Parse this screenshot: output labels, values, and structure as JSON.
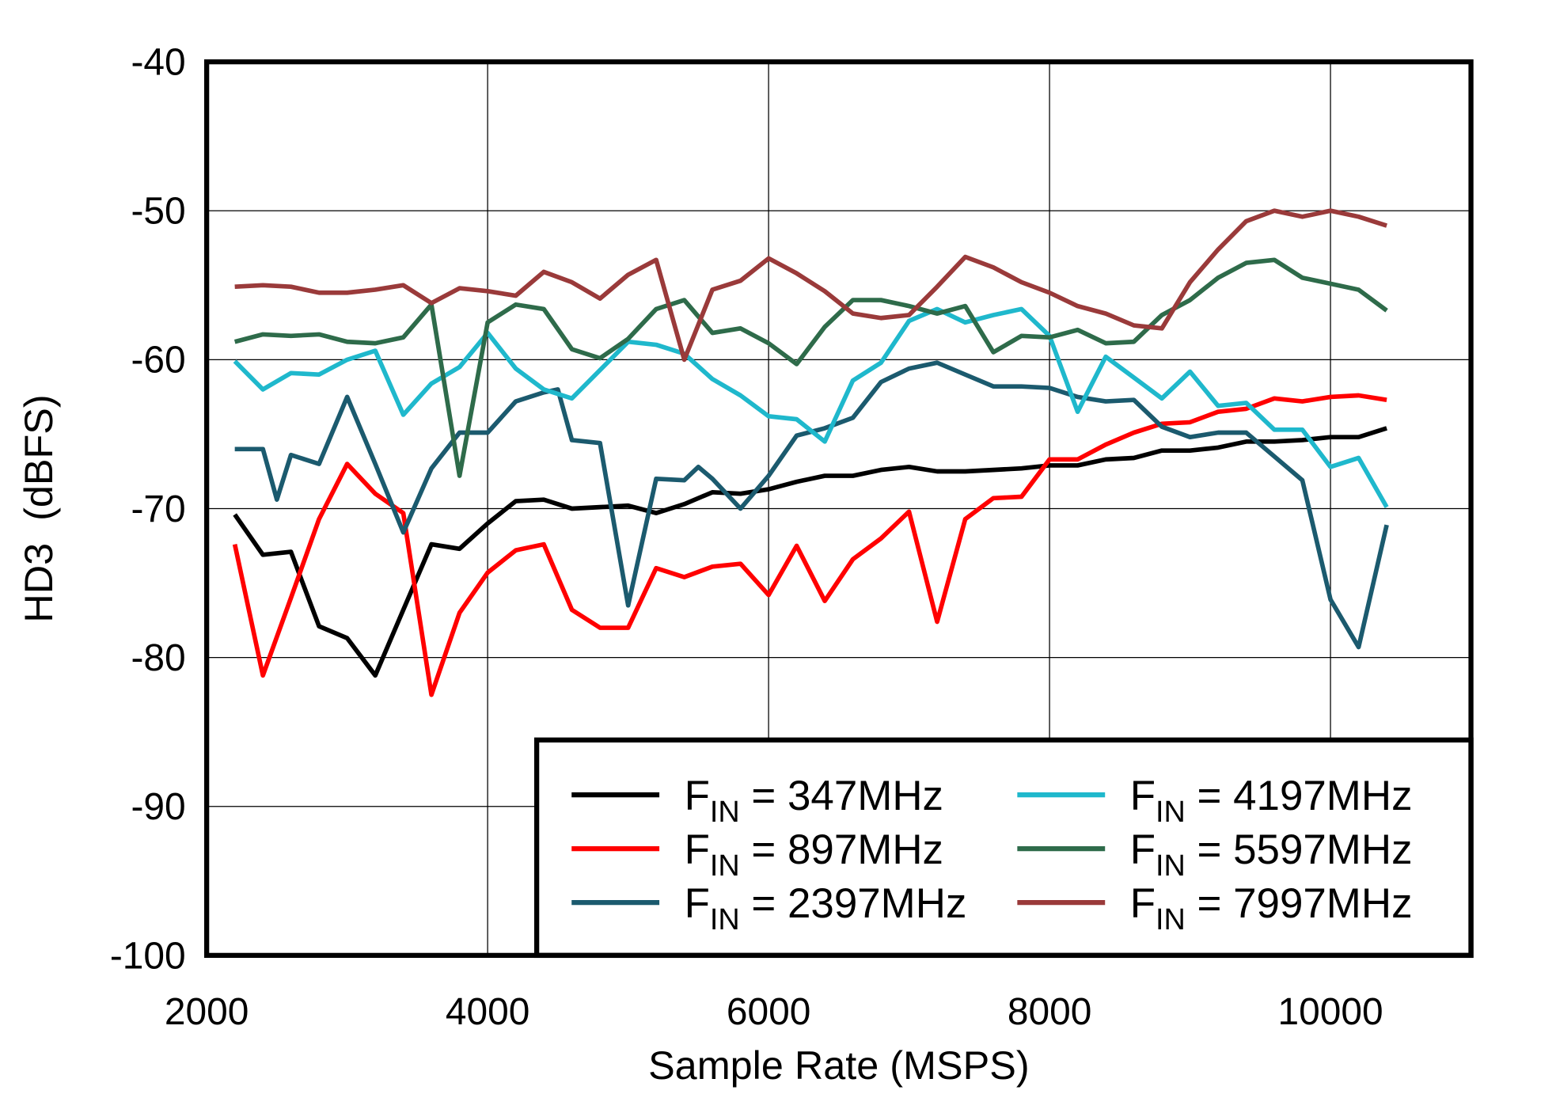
{
  "chart_data": {
    "type": "line",
    "title": "",
    "xlabel": "Sample Rate  (MSPS)",
    "ylabel": "HD3  (dBFS)",
    "xlim": [
      2000,
      11000
    ],
    "ylim": [
      -100,
      -40
    ],
    "xticks": [
      2000,
      4000,
      6000,
      8000,
      10000
    ],
    "yticks": [
      -40,
      -50,
      -60,
      -70,
      -80,
      -90,
      -100
    ],
    "grid": true,
    "legend_position": "bottom-right",
    "series": [
      {
        "name_prefix": "F",
        "name_sub": "IN",
        "name_suffix": " = 347MHz",
        "color": "#000000",
        "x": [
          2200,
          2400,
          2600,
          2800,
          3000,
          3200,
          3400,
          3600,
          3800,
          4000,
          4200,
          4400,
          4600,
          4800,
          5000,
          5200,
          5400,
          5600,
          5800,
          6000,
          6200,
          6400,
          6600,
          6800,
          7000,
          7200,
          7400,
          7600,
          7800,
          8000,
          8200,
          8400,
          8600,
          8800,
          9000,
          9200,
          9400,
          9600,
          9800,
          10000,
          10200,
          10400
        ],
        "y": [
          -70.4,
          -73.1,
          -72.9,
          -77.9,
          -78.7,
          -81.2,
          -76.8,
          -72.4,
          -72.7,
          -71.0,
          -69.5,
          -69.4,
          -70.0,
          -69.9,
          -69.8,
          -70.3,
          -69.7,
          -68.9,
          -69.0,
          -68.7,
          -68.2,
          -67.8,
          -67.8,
          -67.4,
          -67.2,
          -67.5,
          -67.5,
          -67.4,
          -67.3,
          -67.1,
          -67.1,
          -66.7,
          -66.6,
          -66.1,
          -66.1,
          -65.9,
          -65.5,
          -65.5,
          -65.4,
          -65.2,
          -65.2,
          -64.6
        ]
      },
      {
        "name_prefix": "F",
        "name_sub": "IN",
        "name_suffix": " = 897MHz",
        "color": "#ff0000",
        "x": [
          2200,
          2400,
          2600,
          2800,
          3000,
          3200,
          3400,
          3600,
          3800,
          4000,
          4200,
          4400,
          4600,
          4800,
          5000,
          5200,
          5400,
          5600,
          5800,
          6000,
          6200,
          6400,
          6600,
          6800,
          7000,
          7200,
          7400,
          7600,
          7800,
          8000,
          8200,
          8400,
          8600,
          8800,
          9000,
          9200,
          9400,
          9600,
          9800,
          10000,
          10200,
          10400
        ],
        "y": [
          -72.4,
          -81.2,
          -76.0,
          -70.7,
          -67.0,
          -69.0,
          -70.3,
          -82.5,
          -77.0,
          -74.3,
          -72.8,
          -72.4,
          -76.8,
          -78.0,
          -78.0,
          -74.0,
          -74.6,
          -73.9,
          -73.7,
          -75.8,
          -72.5,
          -76.2,
          -73.4,
          -72.0,
          -70.2,
          -77.6,
          -70.7,
          -69.3,
          -69.2,
          -66.7,
          -66.7,
          -65.7,
          -64.9,
          -64.3,
          -64.2,
          -63.5,
          -63.3,
          -62.6,
          -62.8,
          -62.5,
          -62.4,
          -62.7
        ]
      },
      {
        "name_prefix": "F",
        "name_sub": "IN",
        "name_suffix": " = 2397MHz",
        "color": "#1b5a6e",
        "x": [
          2200,
          2400,
          2500,
          2600,
          2800,
          3000,
          3200,
          3400,
          3600,
          3800,
          4000,
          4200,
          4400,
          4500,
          4600,
          4800,
          5000,
          5200,
          5400,
          5500,
          5600,
          5800,
          6000,
          6200,
          6400,
          6600,
          6800,
          7000,
          7200,
          7400,
          7600,
          7800,
          8000,
          8200,
          8400,
          8600,
          8800,
          9000,
          9200,
          9400,
          9600,
          9800,
          10000,
          10200,
          10400
        ],
        "y": [
          -66.0,
          -66.0,
          -69.4,
          -66.4,
          -67.0,
          -62.5,
          -67.0,
          -71.6,
          -67.3,
          -64.9,
          -64.9,
          -62.8,
          -62.2,
          -62.0,
          -65.4,
          -65.6,
          -76.5,
          -68.0,
          -68.1,
          -67.2,
          -68.0,
          -70.0,
          -67.8,
          -65.1,
          -64.6,
          -63.9,
          -61.5,
          -60.6,
          -60.2,
          -61.0,
          -61.8,
          -61.8,
          -61.9,
          -62.5,
          -62.8,
          -62.7,
          -64.5,
          -65.2,
          -64.9,
          -64.9,
          -66.5,
          -68.1,
          -76.1,
          -79.3,
          -71.1
        ]
      },
      {
        "name_prefix": "F",
        "name_sub": "IN",
        "name_suffix": " = 4197MHz",
        "color": "#1fb8cc",
        "x": [
          2200,
          2400,
          2600,
          2800,
          3000,
          3200,
          3400,
          3600,
          3800,
          4000,
          4200,
          4400,
          4600,
          4800,
          5000,
          5200,
          5400,
          5600,
          5800,
          6000,
          6200,
          6400,
          6600,
          6800,
          7000,
          7200,
          7400,
          7600,
          7800,
          8000,
          8200,
          8400,
          8600,
          8800,
          9000,
          9200,
          9400,
          9600,
          9800,
          10000,
          10200,
          10400
        ],
        "y": [
          -60.1,
          -62.0,
          -60.9,
          -61.0,
          -60.0,
          -59.4,
          -63.7,
          -61.6,
          -60.5,
          -58.2,
          -60.6,
          -62.0,
          -62.6,
          -60.7,
          -58.8,
          -59.0,
          -59.6,
          -61.3,
          -62.4,
          -63.8,
          -64.0,
          -65.5,
          -61.4,
          -60.2,
          -57.4,
          -56.6,
          -57.5,
          -57.0,
          -56.6,
          -58.4,
          -63.5,
          -59.8,
          -61.2,
          -62.6,
          -60.8,
          -63.1,
          -62.9,
          -64.7,
          -64.7,
          -67.2,
          -66.6,
          -69.9
        ]
      },
      {
        "name_prefix": "F",
        "name_sub": "IN",
        "name_suffix": " = 5597MHz",
        "color": "#2e6b4a",
        "x": [
          2200,
          2400,
          2600,
          2800,
          3000,
          3200,
          3400,
          3600,
          3800,
          4000,
          4200,
          4400,
          4600,
          4800,
          5000,
          5200,
          5400,
          5600,
          5800,
          6000,
          6200,
          6400,
          6600,
          6800,
          7000,
          7200,
          7400,
          7600,
          7800,
          8000,
          8200,
          8400,
          8600,
          8800,
          9000,
          9200,
          9400,
          9600,
          9800,
          10000,
          10200,
          10400
        ],
        "y": [
          -58.8,
          -58.3,
          -58.4,
          -58.3,
          -58.8,
          -58.9,
          -58.5,
          -56.3,
          -67.8,
          -57.5,
          -56.3,
          -56.6,
          -59.3,
          -59.9,
          -58.6,
          -56.6,
          -56.0,
          -58.2,
          -57.9,
          -58.9,
          -60.3,
          -57.8,
          -56.0,
          -56.0,
          -56.4,
          -56.9,
          -56.4,
          -59.5,
          -58.4,
          -58.5,
          -58.0,
          -58.9,
          -58.8,
          -57.0,
          -56.0,
          -54.5,
          -53.5,
          -53.3,
          -54.5,
          -54.9,
          -55.3,
          -56.7
        ]
      },
      {
        "name_prefix": "F",
        "name_sub": "IN",
        "name_suffix": " = 7997MHz",
        "color": "#9a3a3a",
        "x": [
          2200,
          2400,
          2600,
          2800,
          3000,
          3200,
          3400,
          3600,
          3800,
          4000,
          4200,
          4400,
          4600,
          4800,
          5000,
          5200,
          5400,
          5600,
          5800,
          6000,
          6200,
          6400,
          6600,
          6800,
          7000,
          7200,
          7400,
          7600,
          7800,
          8000,
          8200,
          8400,
          8600,
          8800,
          9000,
          9200,
          9400,
          9600,
          9800,
          10000,
          10200,
          10400
        ],
        "y": [
          -55.1,
          -55.0,
          -55.1,
          -55.5,
          -55.5,
          -55.3,
          -55.0,
          -56.2,
          -55.2,
          -55.4,
          -55.7,
          -54.1,
          -54.8,
          -55.9,
          -54.3,
          -53.3,
          -60.0,
          -55.3,
          -54.7,
          -53.2,
          -54.2,
          -55.4,
          -56.9,
          -57.2,
          -57.0,
          -55.1,
          -53.1,
          -53.8,
          -54.8,
          -55.5,
          -56.4,
          -56.9,
          -57.7,
          -57.9,
          -54.8,
          -52.6,
          -50.7,
          -50.0,
          -50.4,
          -50.0,
          -50.4,
          -51.0
        ]
      }
    ]
  }
}
